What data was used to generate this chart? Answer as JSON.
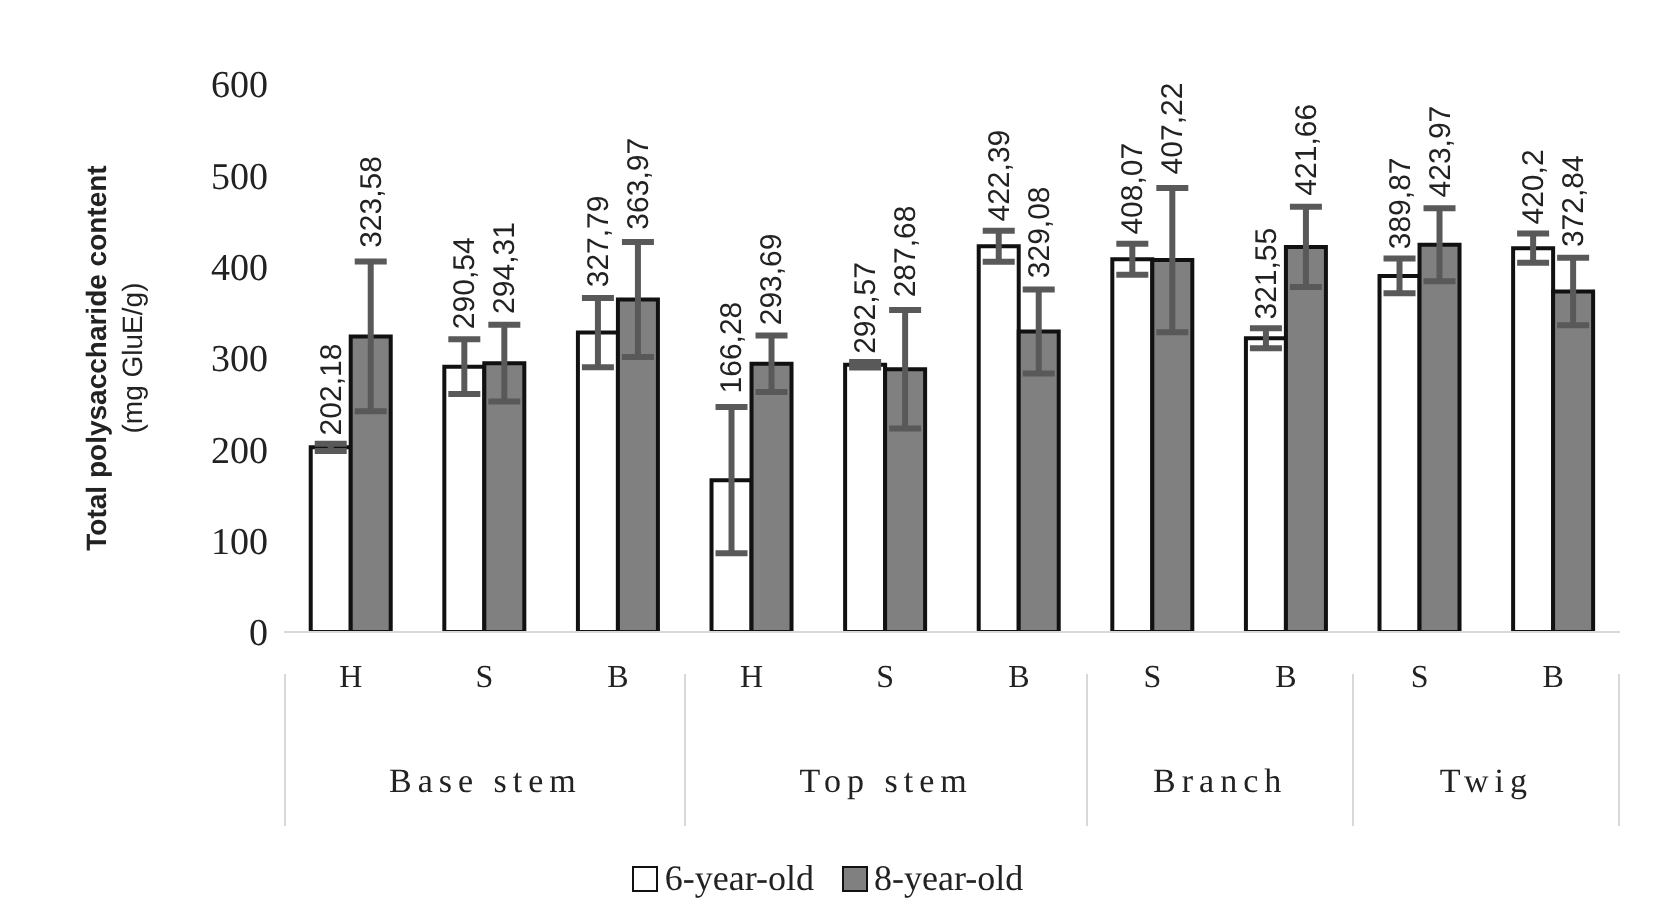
{
  "chart_data": {
    "type": "bar",
    "ylabel": "Total polysaccharide content\n(mg GluE/g)",
    "categories": [
      "H",
      "S",
      "B",
      "H",
      "S",
      "B",
      "S",
      "B",
      "S",
      "B"
    ],
    "annotations": [
      "Base stem",
      "Top stem",
      "Branch",
      "Twig"
    ],
    "series": [
      {
        "name": "6-year-old",
        "color": "#ffffff",
        "values": [
          202.18,
          290.54,
          327.79,
          166.28,
          292.57,
          422.39,
          408.07,
          321.55,
          389.87,
          420.2
        ],
        "errors": [
          4,
          30,
          38,
          80,
          3,
          17,
          17,
          11,
          19,
          16
        ],
        "value_labels": [
          "202,18",
          "290,54",
          "327,79",
          "166,28",
          "292,57",
          "422,39",
          "408,07",
          "321,55",
          "389,87",
          "420,2"
        ]
      },
      {
        "name": "8-year-old",
        "color": "#808080",
        "values": [
          323.58,
          294.31,
          363.97,
          293.69,
          287.68,
          329.08,
          407.22,
          421.66,
          423.97,
          372.84
        ],
        "errors": [
          82,
          42,
          63,
          31,
          65,
          46,
          79,
          44,
          40,
          37
        ],
        "value_labels": [
          "323,58",
          "294,31",
          "363,97",
          "293,69",
          "287,68",
          "329,08",
          "407,22",
          "421,66",
          "423,97",
          "372,84"
        ]
      }
    ],
    "ylim": [
      0,
      600
    ],
    "yticks": [
      0,
      100,
      200,
      300,
      400,
      500,
      600
    ],
    "grid": false,
    "legend": "bottom"
  }
}
